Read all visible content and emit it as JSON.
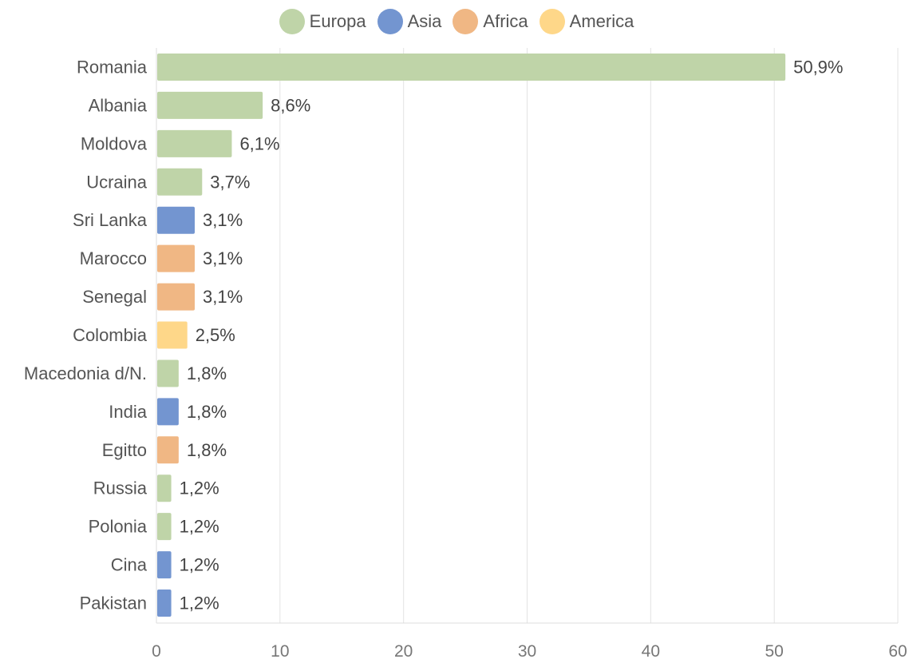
{
  "chart_data": {
    "type": "bar",
    "orientation": "horizontal",
    "legend_position": "top",
    "legend": [
      {
        "name": "Europa",
        "color": "#bfd4a8",
        "icon": "circle"
      },
      {
        "name": "Asia",
        "color": "#7395d0",
        "icon": "circle"
      },
      {
        "name": "Africa",
        "color": "#f0b784",
        "icon": "circle"
      },
      {
        "name": "America",
        "color": "#fed789",
        "icon": "circle"
      }
    ],
    "categories": [
      "Romania",
      "Albania",
      "Moldova",
      "Ucraina",
      "Sri Lanka",
      "Marocco",
      "Senegal",
      "Colombia",
      "Macedonia d/N.",
      "India",
      "Egitto",
      "Russia",
      "Polonia",
      "Cina",
      "Pakistan"
    ],
    "values": [
      50.9,
      8.6,
      6.1,
      3.7,
      3.1,
      3.1,
      3.1,
      2.5,
      1.8,
      1.8,
      1.8,
      1.2,
      1.2,
      1.2,
      1.2
    ],
    "value_labels": [
      "50,9%",
      "8,6%",
      "6,1%",
      "3,7%",
      "3,1%",
      "3,1%",
      "3,1%",
      "2,5%",
      "1,8%",
      "1,8%",
      "1,8%",
      "1,2%",
      "1,2%",
      "1,2%",
      "1,2%"
    ],
    "groups": [
      "Europa",
      "Europa",
      "Europa",
      "Europa",
      "Asia",
      "Africa",
      "Africa",
      "America",
      "Europa",
      "Asia",
      "Africa",
      "Europa",
      "Europa",
      "Asia",
      "Asia"
    ],
    "xlim": [
      0,
      60
    ],
    "xticks": [
      0,
      10,
      20,
      30,
      40,
      50,
      60
    ],
    "grid": true
  }
}
